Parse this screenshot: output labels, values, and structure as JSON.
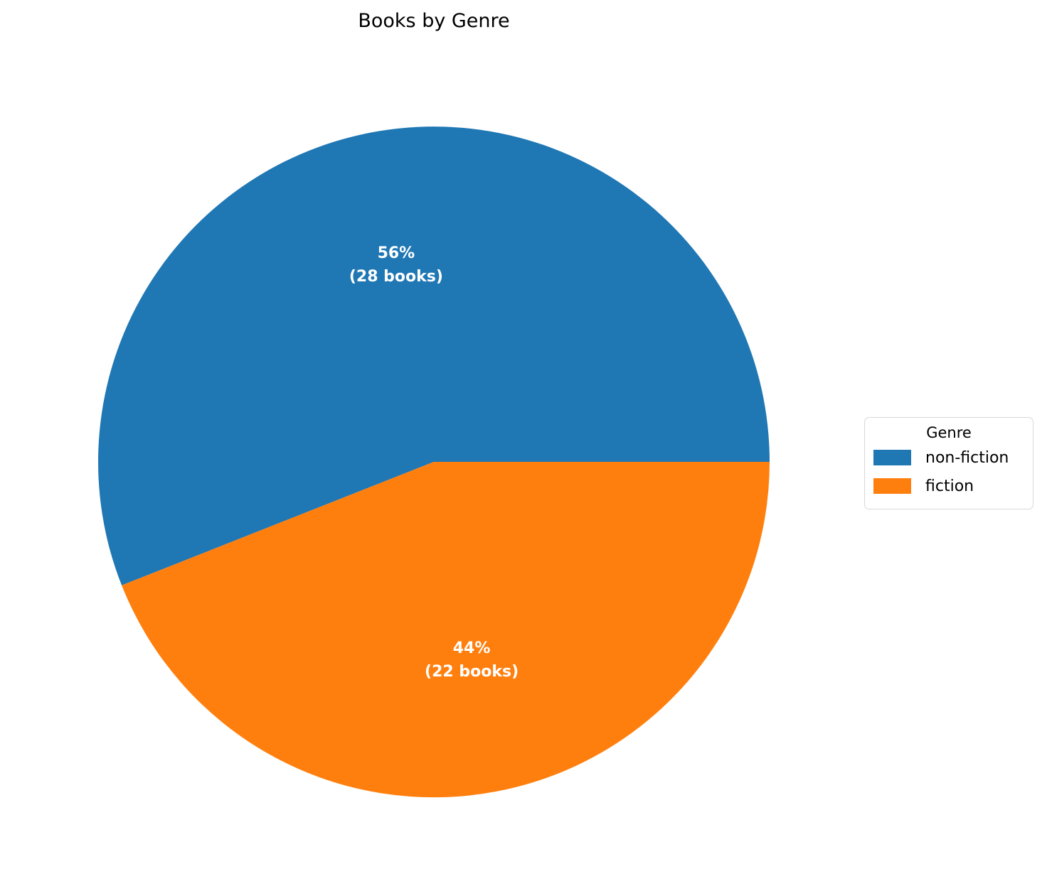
{
  "title": "Books by Genre",
  "chart_data": {
    "type": "pie",
    "title": "Books by Genre",
    "legend_title": "Genre",
    "legend_position": "right",
    "start_angle_deg": 0,
    "direction": "counterclockwise",
    "label_color": "#ffffff",
    "total": 50,
    "slices": [
      {
        "label": "non-fiction",
        "value": 28,
        "pct": 56,
        "pct_label": "56%",
        "count_label": "(28 books)",
        "color": "#1f77b4"
      },
      {
        "label": "fiction",
        "value": 22,
        "pct": 44,
        "pct_label": "44%",
        "count_label": "(22 books)",
        "color": "#ff7f0e"
      }
    ]
  }
}
